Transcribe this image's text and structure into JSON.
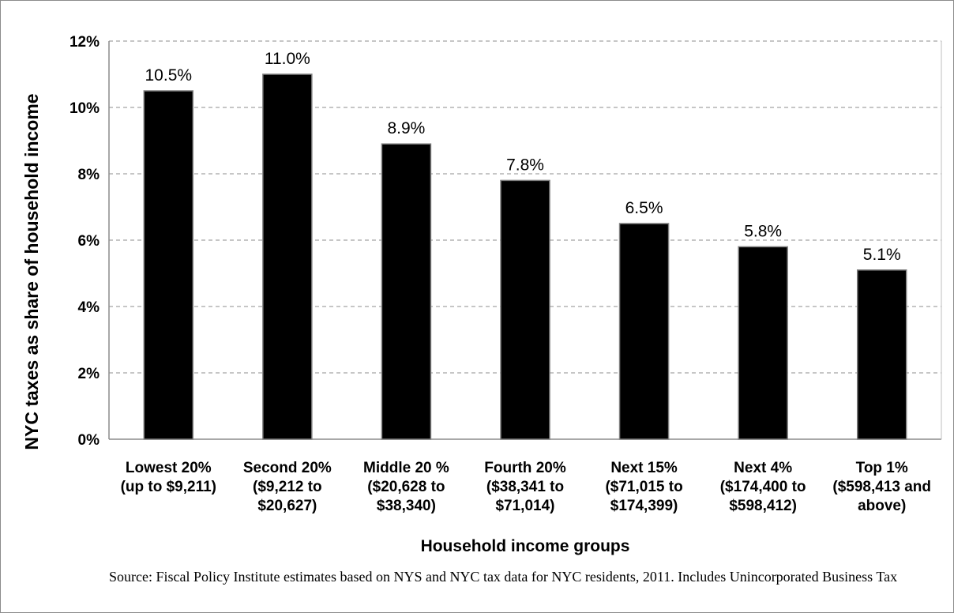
{
  "chart_data": {
    "type": "bar",
    "categories": [
      [
        "Lowest 20%",
        "(up to $9,211)"
      ],
      [
        "Second 20%",
        "($9,212 to",
        "$20,627)"
      ],
      [
        "Middle 20 %",
        "($20,628 to",
        "$38,340)"
      ],
      [
        "Fourth 20%",
        "($38,341 to",
        "$71,014)"
      ],
      [
        "Next 15%",
        "($71,015 to",
        "$174,399)"
      ],
      [
        "Next 4%",
        "($174,400 to",
        "$598,412)"
      ],
      [
        "Top 1%",
        "($598,413 and",
        "above)"
      ]
    ],
    "values": [
      10.5,
      11.0,
      8.9,
      7.8,
      6.5,
      5.8,
      5.1
    ],
    "data_labels": [
      "10.5%",
      "11.0%",
      "8.9%",
      "7.8%",
      "6.5%",
      "5.8%",
      "5.1%"
    ],
    "xlabel": "Household income groups",
    "ylabel": "NYC taxes as share of household income",
    "ylim": [
      0,
      12
    ],
    "yticks": [
      0,
      2,
      4,
      6,
      8,
      10,
      12
    ],
    "ytick_labels": [
      "0%",
      "2%",
      "4%",
      "6%",
      "8%",
      "10%",
      "12%"
    ],
    "grid": "horizontal dashed",
    "bar_color": "#000000"
  },
  "source_note": "Source: Fiscal Policy Institute estimates based on NYS and NYC tax data for NYC residents, 2011. Includes Unincorporated Business Tax"
}
